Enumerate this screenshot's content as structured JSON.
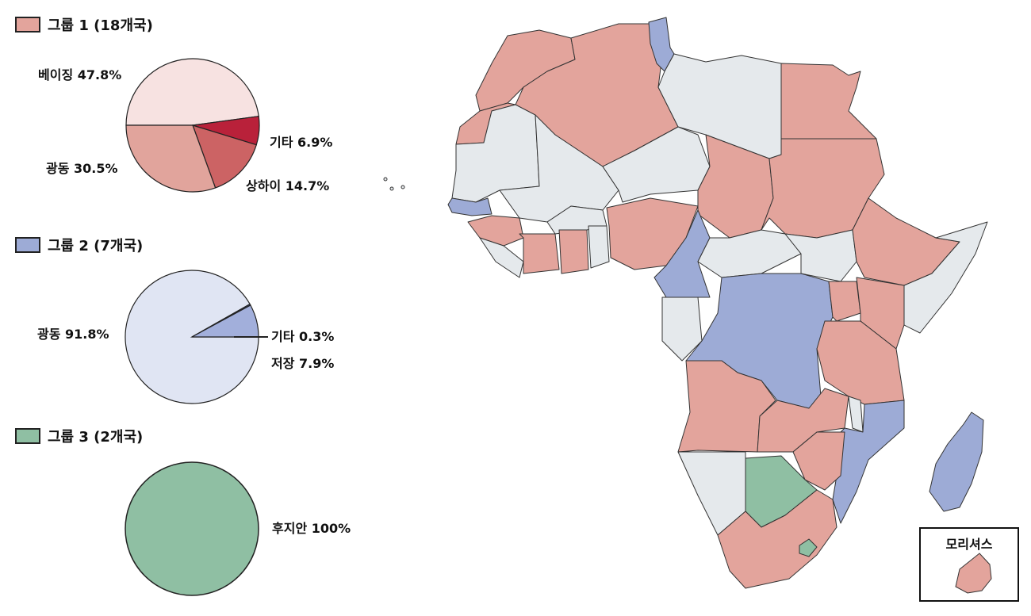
{
  "colors": {
    "group1": "#e3a49c",
    "group2": "#9dabd6",
    "group3": "#8fbfa3",
    "neutral": "#e5e9ec",
    "outline": "#333333"
  },
  "chart_data": [
    {
      "type": "pie",
      "group_label": "그룹 1 (18개국)",
      "slices": [
        {
          "name": "베이징",
          "value": 47.8,
          "label": "베이징 47.8%",
          "color": "#f7e2e1"
        },
        {
          "name": "기타",
          "value": 6.9,
          "label": "기타 6.9%",
          "color": "#b9213a"
        },
        {
          "name": "상하이",
          "value": 14.7,
          "label": "상하이 14.7%",
          "color": "#cc6364"
        },
        {
          "name": "광동",
          "value": 30.5,
          "label": "광동 30.5%",
          "color": "#e1a49c"
        }
      ]
    },
    {
      "type": "pie",
      "group_label": "그룹 2 (7개국)",
      "slices": [
        {
          "name": "광동",
          "value": 91.8,
          "label": "광동 91.8%",
          "color": "#e0e5f3"
        },
        {
          "name": "기타",
          "value": 0.3,
          "label": "기타 0.3%",
          "color": "#3a4f9c"
        },
        {
          "name": "저장",
          "value": 7.9,
          "label": "저장 7.9%",
          "color": "#a2afdb"
        }
      ]
    },
    {
      "type": "pie",
      "group_label": "그룹 3 (2개국)",
      "slices": [
        {
          "name": "후지안",
          "value": 100,
          "label": "후지안 100%",
          "color": "#8fbfa3"
        }
      ]
    }
  ],
  "map": {
    "inset_label": "모리셔스"
  }
}
